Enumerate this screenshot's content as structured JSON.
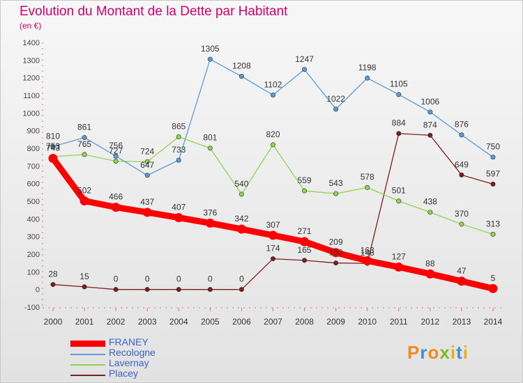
{
  "title": "Evolution du Montant de la Dette par Habitant",
  "subtitle": "(en €)",
  "logo_text": "Proxiti",
  "chart_data": {
    "type": "line",
    "title": "Evolution du Montant de la Dette par Habitant",
    "subtitle": "(en €)",
    "xlabel": "",
    "ylabel": "",
    "ylim": [
      -100,
      1400
    ],
    "yticks": [
      -100,
      0,
      100,
      200,
      300,
      400,
      500,
      600,
      700,
      800,
      900,
      1000,
      1100,
      1200,
      1300,
      1400
    ],
    "grid": false,
    "legend_position": "bottom-left",
    "x": [
      "2000",
      "2001",
      "2002",
      "2003",
      "2004",
      "2005",
      "2006",
      "2007",
      "2008",
      "2009",
      "2010",
      "2011",
      "2012",
      "2013",
      "2014"
    ],
    "series": [
      {
        "name": "FRANEY",
        "color": "#ff0000",
        "values": [
          743,
          502,
          466,
          437,
          407,
          376,
          342,
          307,
          271,
          209,
          163,
          127,
          88,
          47,
          5
        ]
      },
      {
        "name": "Recologne",
        "color": "#5a9bd5",
        "values": [
          810,
          861,
          756,
          647,
          733,
          1305,
          1208,
          1102,
          1247,
          1022,
          1198,
          1105,
          1006,
          876,
          750
        ]
      },
      {
        "name": "Lavernay",
        "color": "#8fd44d",
        "values": [
          753,
          765,
          727,
          724,
          865,
          801,
          540,
          820,
          559,
          543,
          578,
          501,
          438,
          370,
          313
        ]
      },
      {
        "name": "Placey",
        "color": "#7a1f1f",
        "values": [
          28,
          15,
          0,
          0,
          0,
          0,
          0,
          174,
          165,
          150,
          148,
          884,
          874,
          649,
          597
        ]
      }
    ],
    "value_labels": [
      {
        "series": "FRANEY",
        "labels": [
          "743",
          "502",
          "466",
          "437",
          "407",
          "376",
          "342",
          "307",
          "271",
          "209",
          "163",
          "127",
          "88",
          "47",
          "5"
        ]
      },
      {
        "series": "Recologne",
        "labels": [
          "810",
          "861",
          "756",
          "647",
          "733",
          "1305",
          "1208",
          "1102",
          "1247",
          "1022",
          "1198",
          "1105",
          "1006",
          "876",
          "750"
        ]
      },
      {
        "series": "Lavernay",
        "labels": [
          "753",
          "765",
          "727",
          "724",
          "865",
          "801",
          "540",
          "820",
          "559",
          "543",
          "578",
          "501",
          "438",
          "370",
          "313"
        ]
      },
      {
        "series": "Placey",
        "labels": [
          "28",
          "15",
          "0",
          "0",
          "0",
          "0",
          "0",
          "174",
          "165",
          "150",
          "148",
          "884",
          "874",
          "649",
          "597"
        ]
      }
    ]
  }
}
